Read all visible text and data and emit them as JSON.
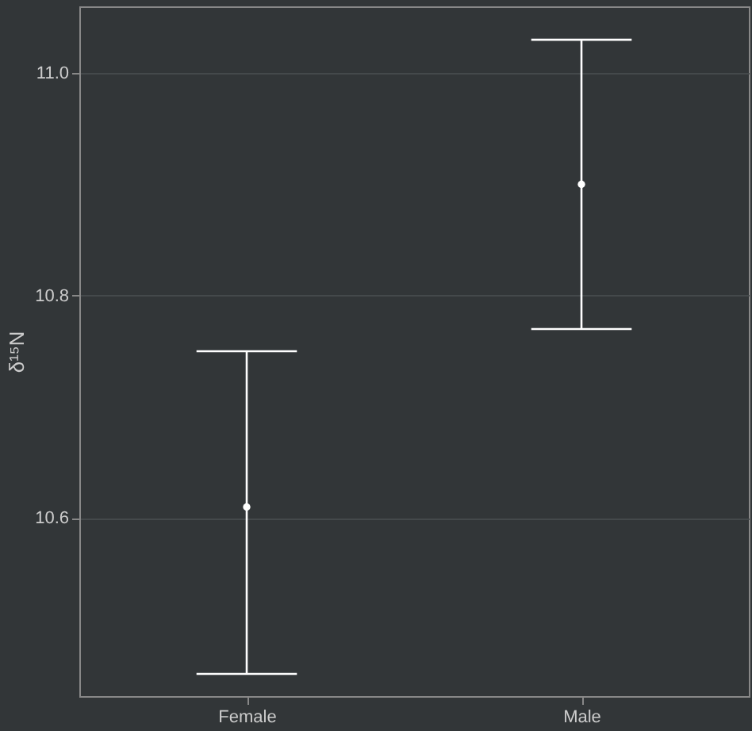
{
  "chart_data": {
    "type": "scatter",
    "ylabel": "δ¹⁵N",
    "categories": [
      "Female",
      "Male"
    ],
    "color": "#ffffff",
    "values": [
      10.61,
      10.9
    ],
    "errors": [
      [
        10.46,
        10.75
      ],
      [
        10.77,
        11.03
      ]
    ],
    "ylim": [
      10.44,
      11.06
    ],
    "yticks": [
      10.6,
      10.8,
      {
        "value": 11,
        "label": "11.0"
      }
    ],
    "grid": "y",
    "marker": "circle"
  }
}
